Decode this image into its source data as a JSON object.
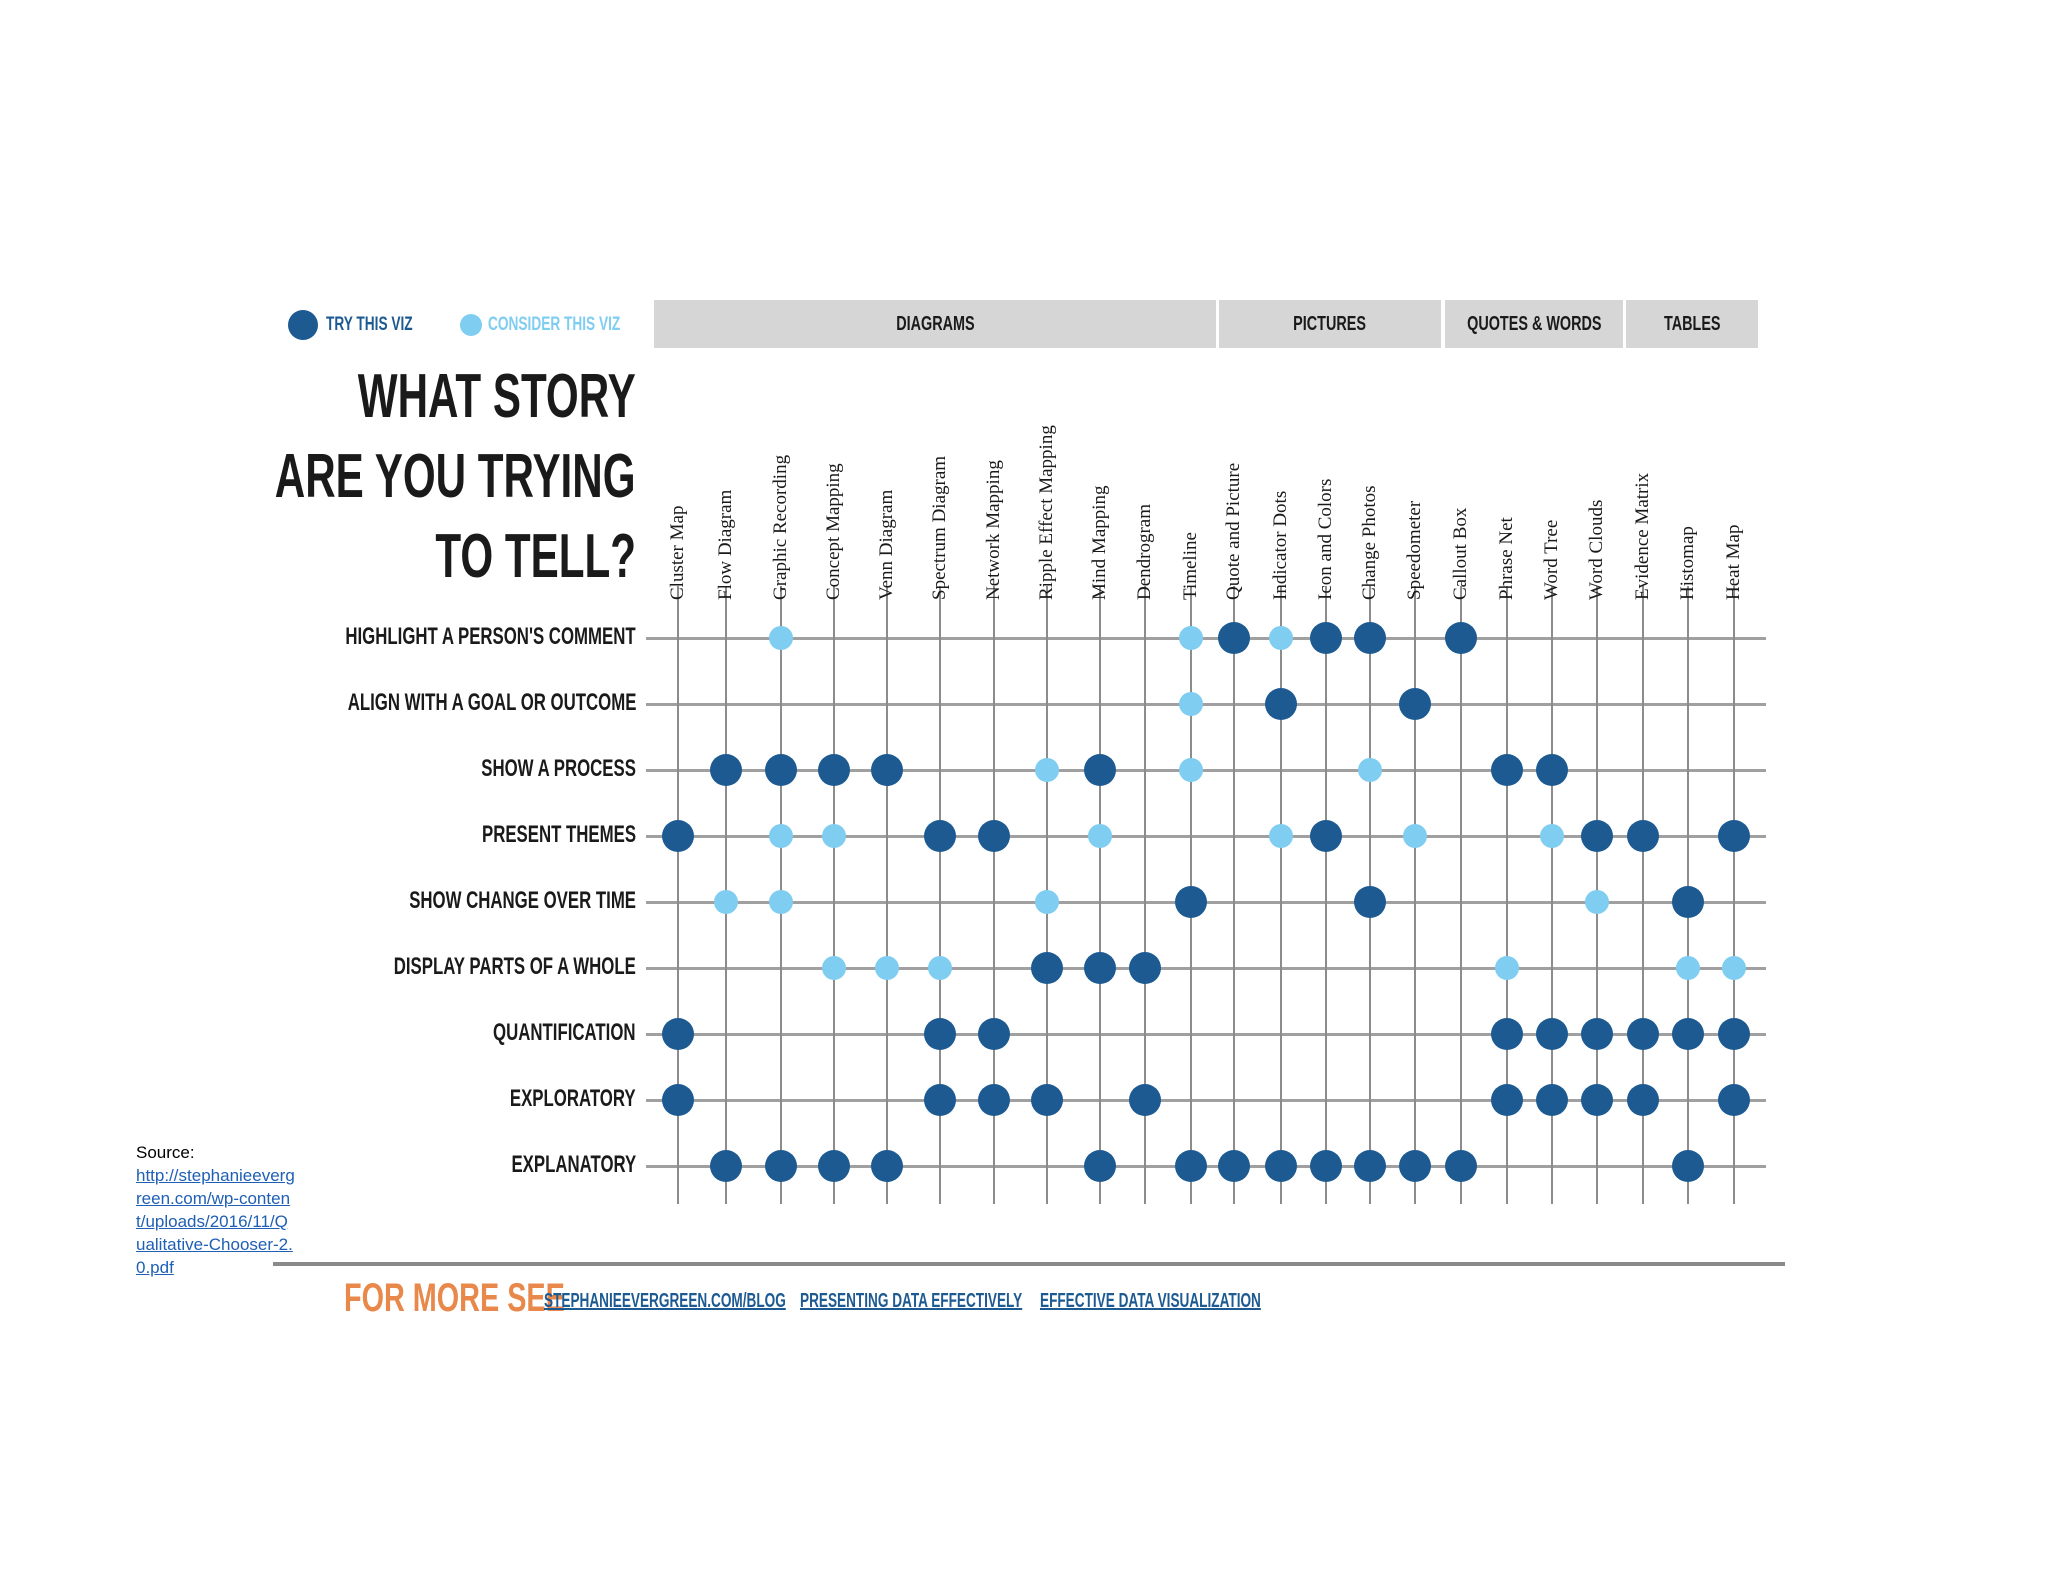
{
  "legend": {
    "try": {
      "label": "TRY THIS VIZ",
      "color": "#1d5a92"
    },
    "consider": {
      "label": "CONSIDER THIS VIZ",
      "color": "#7fcdf0"
    }
  },
  "categories": [
    {
      "label": "DIAGRAMS"
    },
    {
      "label": "PICTURES"
    },
    {
      "label": "QUOTES & WORDS"
    },
    {
      "label": "TABLES"
    }
  ],
  "title": {
    "line1": "WHAT STORY",
    "line2": "ARE YOU TRYING",
    "line3": "TO TELL?"
  },
  "columns": [
    "Cluster Map",
    "Flow Diagram",
    "Graphic Recording",
    "Concept Mapping",
    "Venn Diagram",
    "Spectrum Diagram",
    "Network Mapping",
    "Ripple Effect Mapping",
    "Mind Mapping",
    "Dendrogram",
    "Timeline",
    "Quote and Picture",
    "Indicator Dots",
    "Icon and Colors",
    "Change Photos",
    "Speedometer",
    "Callout Box",
    "Phrase Net",
    "Word Tree",
    "Word Clouds",
    "Evidence Matrix",
    "Histomap",
    "Heat Map"
  ],
  "rows": [
    "HIGHLIGHT A PERSON'S COMMENT",
    "ALIGN WITH A GOAL OR OUTCOME",
    "SHOW A PROCESS",
    "PRESENT THEMES",
    "SHOW CHANGE OVER TIME",
    "DISPLAY PARTS OF A WHOLE",
    "QUANTIFICATION",
    "EXPLORATORY",
    "EXPLANATORY"
  ],
  "chart_data": {
    "type": "table",
    "title": "What story are you trying to tell?",
    "legend": {
      "T": "Try this viz",
      "C": "Consider this viz"
    },
    "column_groups": [
      {
        "name": "DIAGRAMS",
        "columns": [
          "Cluster Map",
          "Flow Diagram",
          "Graphic Recording",
          "Concept Mapping",
          "Venn Diagram",
          "Spectrum Diagram",
          "Network Mapping",
          "Ripple Effect Mapping",
          "Mind Mapping",
          "Dendrogram",
          "Timeline"
        ]
      },
      {
        "name": "PICTURES",
        "columns": [
          "Quote and Picture",
          "Indicator Dots",
          "Icon and Colors",
          "Change Photos",
          "Speedometer"
        ]
      },
      {
        "name": "QUOTES & WORDS",
        "columns": [
          "Callout Box",
          "Phrase Net",
          "Word Tree",
          "Word Clouds"
        ]
      },
      {
        "name": "TABLES",
        "columns": [
          "Evidence Matrix",
          "Histomap",
          "Heat Map"
        ]
      }
    ],
    "matrix": [
      [
        "",
        "",
        "C",
        "",
        "",
        "",
        "",
        "",
        "",
        "",
        "C",
        "T",
        "C",
        "T",
        "T",
        "",
        "T",
        "",
        "",
        "",
        "",
        "",
        ""
      ],
      [
        "",
        "",
        "",
        "",
        "",
        "",
        "",
        "",
        "",
        "",
        "C",
        "",
        "T",
        "",
        "",
        "T",
        "",
        "",
        "",
        "",
        "",
        "",
        ""
      ],
      [
        "",
        "T",
        "T",
        "T",
        "T",
        "",
        "",
        "C",
        "T",
        "",
        "C",
        "",
        "",
        "",
        "C",
        "",
        "",
        "T",
        "T",
        "",
        "",
        "",
        ""
      ],
      [
        "T",
        "",
        "C",
        "C",
        "",
        "T",
        "T",
        "",
        "C",
        "",
        "",
        "",
        "C",
        "T",
        "",
        "C",
        "",
        "",
        "C",
        "T",
        "T",
        "",
        "T"
      ],
      [
        "",
        "C",
        "C",
        "",
        "",
        "",
        "",
        "C",
        "",
        "",
        "T",
        "",
        "",
        "",
        "T",
        "",
        "",
        "",
        "",
        "C",
        "",
        "T",
        ""
      ],
      [
        "",
        "",
        "",
        "C",
        "C",
        "C",
        "",
        "T",
        "T",
        "T",
        "",
        "",
        "",
        "",
        "",
        "",
        "",
        "C",
        "",
        "",
        "",
        "C",
        "C"
      ],
      [
        "T",
        "",
        "",
        "",
        "",
        "T",
        "T",
        "",
        "",
        "",
        "",
        "",
        "",
        "",
        "",
        "",
        "",
        "T",
        "T",
        "T",
        "T",
        "T",
        "T"
      ],
      [
        "T",
        "",
        "",
        "",
        "",
        "T",
        "T",
        "T",
        "",
        "T",
        "",
        "",
        "",
        "",
        "",
        "",
        "",
        "T",
        "T",
        "T",
        "T",
        "",
        "T"
      ],
      [
        "",
        "T",
        "T",
        "T",
        "T",
        "",
        "",
        "",
        "T",
        "",
        "T",
        "T",
        "T",
        "T",
        "T",
        "T",
        "T",
        "",
        "",
        "",
        "",
        "T",
        ""
      ]
    ]
  },
  "footer": {
    "for_more_label": "FOR MORE SEE",
    "links": [
      "STEPHANIEEVERGREEN.COM/BLOG",
      "PRESENTING DATA EFFECTIVELY",
      "EFFECTIVE DATA VISUALIZATION"
    ]
  },
  "source": {
    "label": "Source:",
    "link_text": "http://stephanieevergreen.com/wp-content/uploads/2016/11/Qualitative-Chooser-2.0.pdf"
  }
}
